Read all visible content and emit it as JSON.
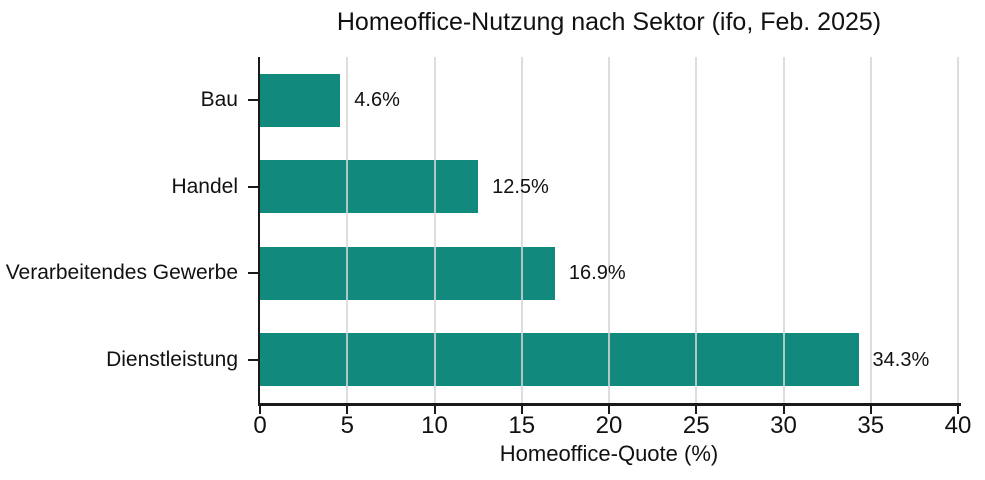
{
  "chart_data": {
    "type": "bar",
    "orientation": "horizontal",
    "title": "Homeoffice-Nutzung nach Sektor (ifo, Feb. 2025)",
    "xlabel": "Homeoffice-Quote (%)",
    "categories": [
      "Bau",
      "Handel",
      "Verarbeitendes Gewerbe",
      "Dienstleistung"
    ],
    "values": [
      4.6,
      12.5,
      16.9,
      34.3
    ],
    "value_labels": [
      "4.6%",
      "12.5%",
      "16.9%",
      "34.3%"
    ],
    "xlim": [
      0,
      40
    ],
    "xticks": [
      0,
      5,
      10,
      15,
      20,
      25,
      30,
      35,
      40
    ],
    "grid": true,
    "legend": "none",
    "colors": {
      "bar": "#11897C",
      "gridline": "rgba(214,214,214,0.82)",
      "axis": "#1a1a1a",
      "text": "#111111"
    }
  }
}
